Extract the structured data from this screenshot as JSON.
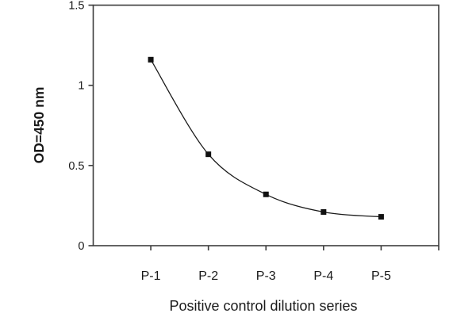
{
  "chart_data": {
    "type": "line",
    "title": "",
    "categories": [
      "P-1",
      "P-2",
      "P-3",
      "P-4",
      "P-5"
    ],
    "series": [
      {
        "name": "Positive control",
        "values": [
          1.16,
          0.57,
          0.32,
          0.21,
          0.18
        ]
      }
    ],
    "xlabel": "Positive control dilution series",
    "ylabel": "OD=450 nm",
    "ylim": [
      0,
      1.5
    ],
    "yticks": [
      0,
      0.5,
      1,
      1.5
    ],
    "ytick_labels": [
      "0",
      "0.5",
      "1",
      "1.5"
    ],
    "marker": "filled-square",
    "line_style": "smooth",
    "grid": false,
    "legend": "none",
    "colors": {
      "line": "#1a1a1a",
      "marker": "#111111",
      "frame": "#3d3d3d",
      "text": "#1a1a1a",
      "background": "#ffffff"
    }
  }
}
